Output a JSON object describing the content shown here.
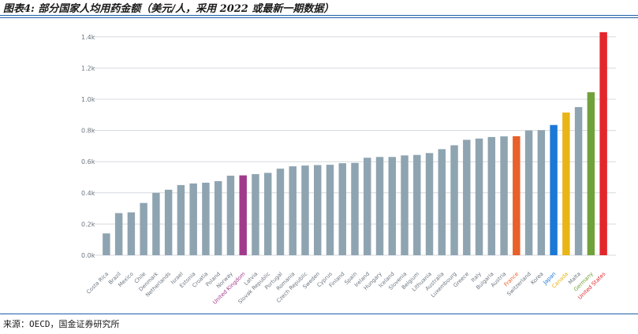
{
  "title": "图表4: 部分国家人均用药金额（美元/人，采用 2022 或最新一期数据）",
  "source": "来源：OECD，国金证券研究所",
  "colors": {
    "default_bar": "#8fa4b1",
    "grid": "#d5d9dd",
    "tick_text": "#6b7680",
    "united_kingdom": "#a23a8c",
    "france": "#e8602a",
    "japan": "#1b78d6",
    "canada": "#e9b416",
    "germany": "#6fa23a",
    "united_states": "#e3262b"
  },
  "chart_data": {
    "type": "bar",
    "ylim": [
      0,
      1450
    ],
    "yticks": [
      {
        "value": 0,
        "label": "0.0k"
      },
      {
        "value": 200,
        "label": "0.2k"
      },
      {
        "value": 400,
        "label": "0.4k"
      },
      {
        "value": 600,
        "label": "0.6k"
      },
      {
        "value": 800,
        "label": "0.8k"
      },
      {
        "value": 1000,
        "label": "1.0k"
      },
      {
        "value": 1200,
        "label": "1.2k"
      },
      {
        "value": 1400,
        "label": "1.4k"
      }
    ],
    "grid": true,
    "categories": [
      "Costa Rica",
      "Brazil",
      "Mexico",
      "Chile",
      "Denmark",
      "Netherlands",
      "Israel",
      "Estonia",
      "Croatia",
      "Poland",
      "Norway",
      "United Kingdom",
      "Latvia",
      "Slovak Republic",
      "Portugal",
      "Romania",
      "Czech Republic",
      "Sweden",
      "Cyprus",
      "Finland",
      "Spain",
      "Ireland",
      "Hungary",
      "Iceland",
      "Slovenia",
      "Belgium",
      "Lithuania",
      "Australia",
      "Luxembourg",
      "Greece",
      "Italy",
      "Bulgaria",
      "Austria",
      "France",
      "Switzerland",
      "Korea",
      "Japan",
      "Canada",
      "Malta",
      "Germany",
      "United States"
    ],
    "values": [
      140,
      270,
      275,
      335,
      400,
      420,
      450,
      460,
      465,
      475,
      510,
      512,
      520,
      528,
      555,
      570,
      575,
      578,
      580,
      590,
      592,
      625,
      630,
      630,
      640,
      643,
      655,
      680,
      705,
      740,
      748,
      758,
      762,
      763,
      800,
      802,
      835,
      915,
      950,
      1045,
      1430
    ],
    "highlights": {
      "United Kingdom": "united_kingdom",
      "France": "france",
      "Japan": "japan",
      "Canada": "canada",
      "Germany": "germany",
      "United States": "united_states"
    }
  }
}
